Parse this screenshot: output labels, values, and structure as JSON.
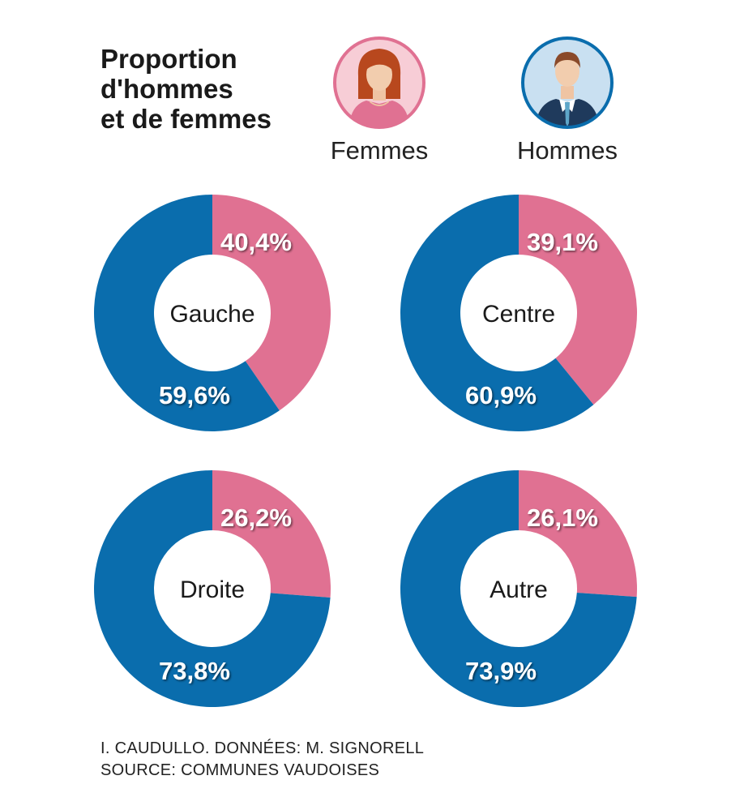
{
  "title_lines": [
    "Proportion",
    "d'hommes",
    "et de femmes"
  ],
  "legend": {
    "femmes": {
      "label": "Femmes",
      "icon": "woman-avatar-icon",
      "color": "#E07192"
    },
    "hommes": {
      "label": "Hommes",
      "icon": "man-avatar-icon",
      "color": "#0A6DAD"
    }
  },
  "chart_data": [
    {
      "type": "pie",
      "center_label": "Gauche",
      "slices": [
        {
          "name": "Femmes",
          "value": 40.4,
          "label": "40,4%"
        },
        {
          "name": "Hommes",
          "value": 59.6,
          "label": "59,6%"
        }
      ]
    },
    {
      "type": "pie",
      "center_label": "Centre",
      "slices": [
        {
          "name": "Femmes",
          "value": 39.1,
          "label": "39,1%"
        },
        {
          "name": "Hommes",
          "value": 60.9,
          "label": "60,9%"
        }
      ]
    },
    {
      "type": "pie",
      "center_label": "Droite",
      "slices": [
        {
          "name": "Femmes",
          "value": 26.2,
          "label": "26,2%"
        },
        {
          "name": "Hommes",
          "value": 73.8,
          "label": "73,8%"
        }
      ]
    },
    {
      "type": "pie",
      "center_label": "Autre",
      "slices": [
        {
          "name": "Femmes",
          "value": 26.1,
          "label": "26,1%"
        },
        {
          "name": "Hommes",
          "value": 73.9,
          "label": "73,9%"
        }
      ]
    }
  ],
  "credits": [
    "I. CAUDULLO. DONNÉES: M. SIGNORELL",
    "SOURCE: COMMUNES VAUDOISES"
  ]
}
